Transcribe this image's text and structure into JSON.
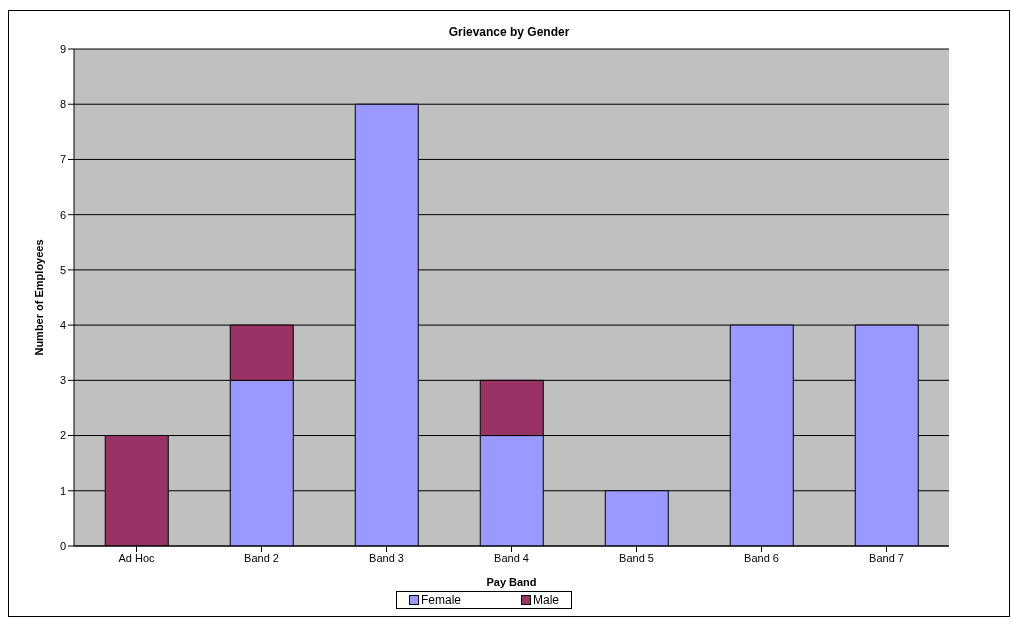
{
  "chart_data": {
    "type": "bar",
    "title": "Grievance by Gender",
    "xlabel": "Pay Band",
    "ylabel": "Number of Employees",
    "categories": [
      "Ad Hoc",
      "Band 2",
      "Band 3",
      "Band 4",
      "Band 5",
      "Band 6",
      "Band 7"
    ],
    "stacked": true,
    "series": [
      {
        "name": "Female",
        "color": "#9999ff",
        "values": [
          null,
          3,
          8,
          2,
          1,
          4,
          4
        ]
      },
      {
        "name": "Male",
        "color": "#993366",
        "values": [
          2,
          1,
          null,
          1,
          null,
          null,
          null
        ]
      }
    ],
    "ylim": [
      0,
      9
    ],
    "yticks": [
      0,
      1,
      2,
      3,
      4,
      5,
      6,
      7,
      8,
      9
    ],
    "grid": "y",
    "legend": "bottom"
  }
}
